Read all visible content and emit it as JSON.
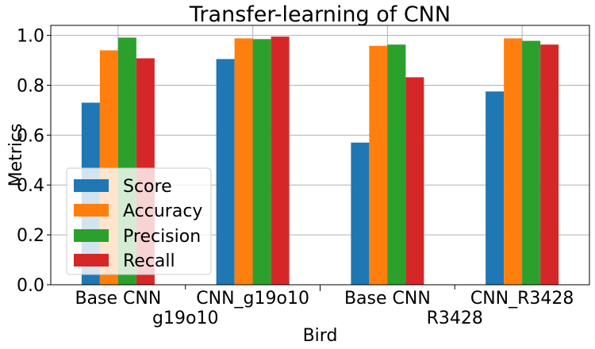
{
  "chart_data": {
    "type": "bar",
    "title": "Transfer-learning of CNN",
    "xlabel": "Bird",
    "ylabel": "Metrics",
    "ylim": [
      0,
      1.04
    ],
    "yticks": [
      "0.0",
      "0.2",
      "0.4",
      "0.6",
      "0.8",
      "1.0"
    ],
    "grid": true,
    "legend_position": "lower-left",
    "categories": [
      "Base CNN",
      "CNN_g19o10",
      "Base CNN",
      "CNN_R3428"
    ],
    "groups": [
      "g19o10",
      "R3428"
    ],
    "series": [
      {
        "name": "Score",
        "color": "#1f77b4",
        "values": [
          0.73,
          0.905,
          0.57,
          0.775
        ]
      },
      {
        "name": "Accuracy",
        "color": "#ff7f0e",
        "values": [
          0.94,
          0.988,
          0.958,
          0.988
        ]
      },
      {
        "name": "Precision",
        "color": "#2ca02c",
        "values": [
          0.991,
          0.985,
          0.963,
          0.978
        ]
      },
      {
        "name": "Recall",
        "color": "#d62728",
        "values": [
          0.908,
          0.995,
          0.832,
          0.963
        ]
      }
    ]
  }
}
